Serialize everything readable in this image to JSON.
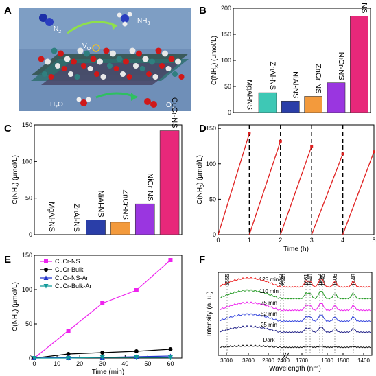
{
  "panel_labels": [
    "A",
    "B",
    "C",
    "D",
    "E",
    "F"
  ],
  "schematic": {
    "n2": "N",
    "n2_sub": "2",
    "nh3": "NH",
    "nh3_sub": "3",
    "vo": "V",
    "vo_sub": "O",
    "h2o": "H",
    "h2o_sub": "2",
    "h2o_tail": "O",
    "o2": "O",
    "o2_sub": "2"
  },
  "chart_data": [
    {
      "panel": "B",
      "type": "bar",
      "categories": [
        "MgAl-NS",
        "ZnAl-NS",
        "NiAl-NS",
        "ZnCr-NS",
        "NiCr-NS",
        "CuCr-NS"
      ],
      "values": [
        0,
        38,
        22,
        31,
        57,
        185
      ],
      "colors": [
        "#ffffff",
        "#3ec8b5",
        "#2a3ea8",
        "#f39a3c",
        "#9a36e0",
        "#e8287a"
      ],
      "ylabel": "C(NH3) (μmol/L)",
      "ylim": [
        0,
        200
      ],
      "yticks": [
        "0",
        "50",
        "100",
        "150",
        "200"
      ]
    },
    {
      "panel": "C",
      "type": "bar",
      "categories": [
        "MgAl-NS",
        "ZnAl-NS",
        "NiAl-NS",
        "ZnCr-NS",
        "NiCr-NS",
        "CuCr-NS"
      ],
      "values": [
        0,
        0,
        20,
        17,
        42,
        142
      ],
      "colors": [
        "#ffffff",
        "#ffffff",
        "#2a3ea8",
        "#f39a3c",
        "#9a36e0",
        "#e8287a"
      ],
      "ylabel": "C(NH3) (μmol/L)",
      "ylim": [
        0,
        150
      ],
      "yticks": [
        "0",
        "50",
        "100",
        "150"
      ]
    },
    {
      "panel": "D",
      "type": "line",
      "xlabel": "Time (h)",
      "ylabel": "C(NH3) (μmol/L)",
      "xlim": [
        0,
        5
      ],
      "ylim": [
        0,
        155
      ],
      "xticks": [
        "0",
        "1",
        "2",
        "3",
        "4",
        "5"
      ],
      "yticks": [
        "0",
        "50",
        "100",
        "150"
      ],
      "cycles": [
        {
          "x": [
            0,
            1
          ],
          "y": [
            0,
            143
          ]
        },
        {
          "x": [
            1,
            2
          ],
          "y": [
            0,
            132
          ]
        },
        {
          "x": [
            2,
            3
          ],
          "y": [
            0,
            125
          ]
        },
        {
          "x": [
            3,
            4
          ],
          "y": [
            0,
            114
          ]
        },
        {
          "x": [
            4,
            5
          ],
          "y": [
            0,
            117
          ]
        }
      ],
      "dashed_x": [
        1,
        2,
        3,
        4
      ]
    },
    {
      "panel": "E",
      "type": "line",
      "xlabel": "Time (min)",
      "ylabel": "C(NH3) (μmol/L)",
      "xlim": [
        0,
        65
      ],
      "ylim": [
        0,
        150
      ],
      "xticks": [
        "0",
        "10",
        "20",
        "30",
        "40",
        "50",
        "60"
      ],
      "yticks": [
        "0",
        "50",
        "100",
        "150"
      ],
      "x": [
        0,
        15,
        30,
        45,
        60
      ],
      "series": [
        {
          "name": "CuCr-NS",
          "color": "#ee22ee",
          "marker": "square",
          "values": [
            0,
            40,
            80,
            99,
            143
          ]
        },
        {
          "name": "CuCr-Bulk",
          "color": "#000000",
          "marker": "circle",
          "values": [
            0,
            6,
            8,
            10,
            13
          ]
        },
        {
          "name": "CuCr-NS-Ar",
          "color": "#2233cc",
          "marker": "triangle",
          "values": [
            0,
            1,
            1,
            2,
            3
          ]
        },
        {
          "name": "CuCr-Bulk-Ar",
          "color": "#119999",
          "marker": "triangle-down",
          "values": [
            0,
            0,
            1,
            1,
            1
          ]
        }
      ]
    },
    {
      "panel": "F",
      "type": "line",
      "xlabel": "Wavelength (nm)",
      "ylabel": "Intensity (a. u.)",
      "xticks": [
        "3600",
        "3200",
        "2800",
        "2400",
        "1700",
        "1600",
        "1500",
        "1400"
      ],
      "peak_labels": [
        "3555",
        "2362",
        "2340",
        "1661",
        "1640",
        "1557",
        "1545",
        "1506",
        "1448"
      ],
      "curve_labels": [
        "125 min",
        "110 min",
        "75 min",
        "52 min",
        "25 min",
        "Dark"
      ],
      "curve_colors": [
        "#ee2222",
        "#229922",
        "#ee22ee",
        "#3344dd",
        "#222288",
        "#111111"
      ]
    }
  ]
}
